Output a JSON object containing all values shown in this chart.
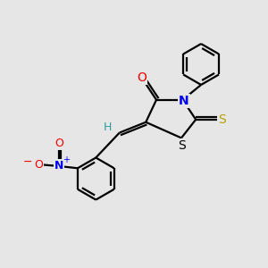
{
  "background_color": "#e6e6e6",
  "figsize": [
    3.0,
    3.0
  ],
  "dpi": 100,
  "atom_colors": {
    "C": "#000000",
    "H": "#2e9e9e",
    "N": "#0000ee",
    "O": "#ee0000",
    "S_yellow": "#b8a000",
    "S_black": "#000000"
  },
  "bond_color": "#000000",
  "bond_width": 1.6
}
